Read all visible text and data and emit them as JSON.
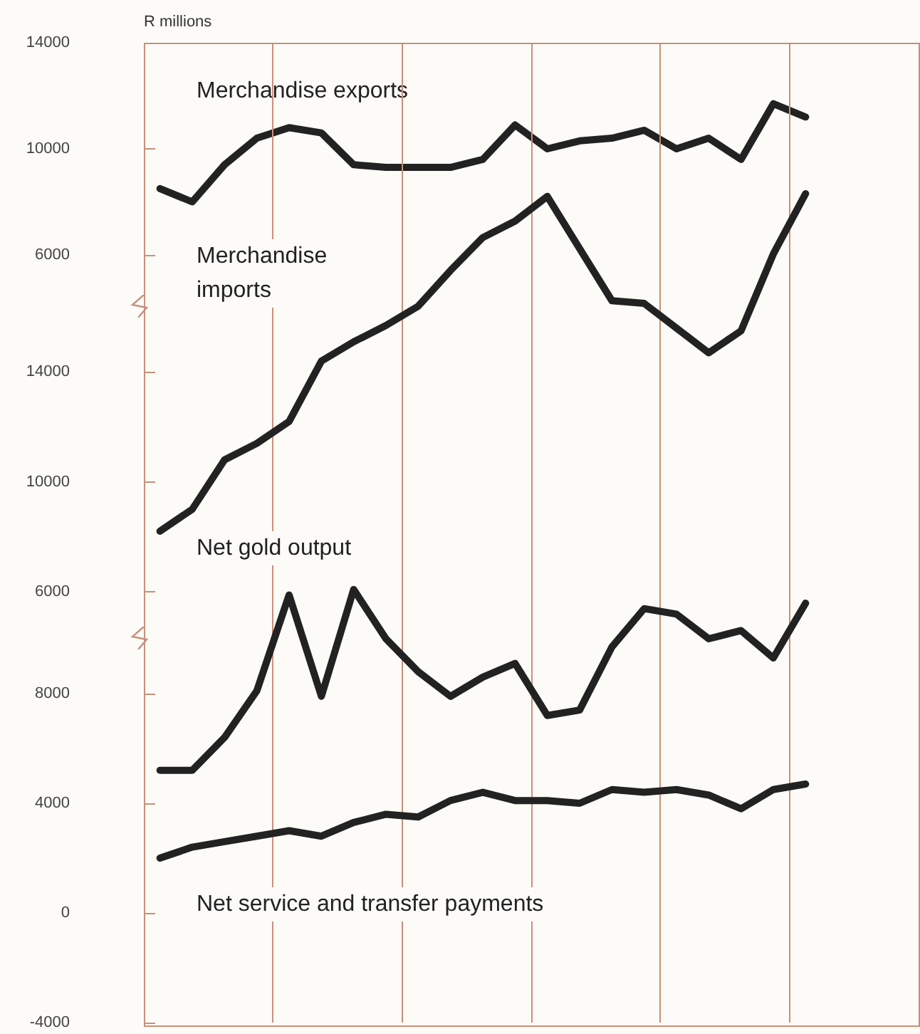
{
  "chart_data": [
    {
      "type": "line",
      "ylabel": "R millions",
      "categories": [
        null,
        null,
        null,
        null,
        null,
        null,
        null,
        null,
        null,
        null,
        null,
        null,
        null,
        null,
        null,
        null,
        null,
        null,
        null,
        null,
        null,
        null,
        null,
        null
      ],
      "series": [
        {
          "name": "Merchandise exports",
          "color": "#222222",
          "values": [
            8500,
            8000,
            9400,
            10400,
            10800,
            10600,
            9400,
            9300,
            9300,
            9300,
            9600,
            10900,
            10000,
            10300,
            10400,
            10700,
            10000,
            10400,
            9600,
            11700,
            11200,
            null,
            null,
            null
          ]
        }
      ],
      "ylim": [
        6000,
        14000
      ],
      "yticks": [
        6000,
        10000,
        14000
      ],
      "grid": "x",
      "marker": "none",
      "line_style": "solid"
    },
    {
      "type": "line",
      "categories": [
        null,
        null,
        null,
        null,
        null,
        null,
        null,
        null,
        null,
        null,
        null,
        null,
        null,
        null,
        null,
        null,
        null,
        null,
        null,
        null,
        null,
        null,
        null,
        null
      ],
      "series": [
        {
          "name": "Merchandise imports",
          "color": "#222222",
          "values": [
            8200,
            9000,
            10800,
            11400,
            12200,
            14400,
            15100,
            15700,
            16400,
            17700,
            18900,
            19500,
            20400,
            18500,
            16600,
            16500,
            15600,
            14700,
            15500,
            18300,
            20500,
            null,
            null,
            null
          ]
        }
      ],
      "ylim": [
        5500,
        26000
      ],
      "yticks": [
        6000,
        10000,
        14000
      ],
      "grid": "x",
      "marker": "none",
      "line_style": "solid"
    },
    {
      "type": "line",
      "categories": [
        null,
        null,
        null,
        null,
        null,
        null,
        null,
        null,
        null,
        null,
        null,
        null,
        null,
        null,
        null,
        null,
        null,
        null,
        null,
        null,
        null,
        null,
        null,
        null
      ],
      "series": [
        {
          "name": "Net gold output",
          "color": "#222222",
          "values": [
            5200,
            5200,
            6400,
            8100,
            11600,
            7900,
            11800,
            10000,
            8800,
            7900,
            8600,
            9100,
            7200,
            7400,
            9700,
            11100,
            10900,
            10000,
            10300,
            9300,
            11300,
            null,
            null,
            null
          ]
        },
        {
          "name": "Net service and transfer payments",
          "color": "#222222",
          "values": [
            2000,
            2400,
            2600,
            2800,
            3000,
            2800,
            3300,
            3600,
            3500,
            4100,
            4400,
            4100,
            4100,
            4000,
            4500,
            4400,
            4500,
            4300,
            3800,
            4500,
            4700,
            null,
            null,
            null
          ]
        }
      ],
      "ylim": [
        -4000,
        12000
      ],
      "yticks": [
        -4000,
        0,
        4000,
        8000
      ],
      "grid": "x",
      "marker": "none",
      "line_style": "solid"
    }
  ]
}
